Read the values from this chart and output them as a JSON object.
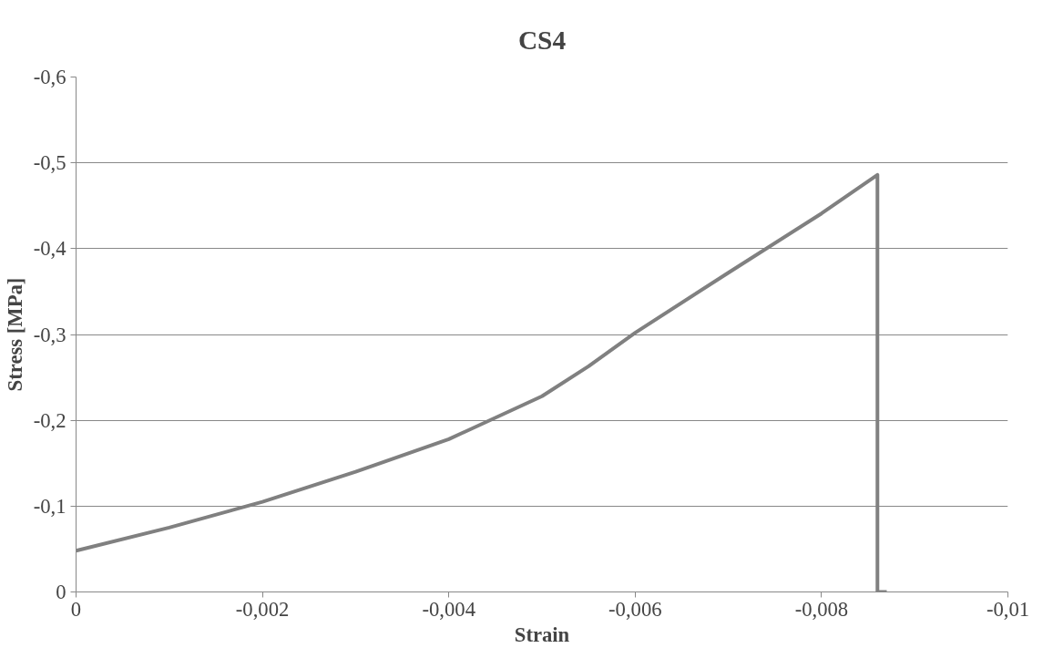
{
  "chart_data": {
    "type": "line",
    "title": "CS4",
    "xlabel": "Strain",
    "ylabel": "Stress [MPa]",
    "x": [
      0,
      -0.001,
      -0.002,
      -0.003,
      -0.004,
      -0.005,
      -0.0055,
      -0.006,
      -0.007,
      -0.008,
      -0.0086,
      -0.0086,
      -0.0087
    ],
    "series": [
      {
        "color": "#808080",
        "values": [
          -0.048,
          -0.075,
          -0.105,
          -0.14,
          -0.178,
          -0.228,
          -0.263,
          -0.302,
          -0.372,
          -0.441,
          -0.486,
          0,
          0
        ]
      }
    ],
    "xlim": [
      0,
      -0.01
    ],
    "ylim": [
      0,
      -0.6
    ],
    "xticks": [
      0,
      {
        "value": -0.002,
        "label": "-0,002"
      },
      {
        "value": -0.004,
        "label": "-0,004"
      },
      {
        "value": -0.006,
        "label": "-0,006"
      },
      {
        "value": -0.008,
        "label": "-0,008"
      },
      {
        "value": -0.01,
        "label": "-0,01"
      }
    ],
    "yticks": [
      0,
      {
        "value": -0.1,
        "label": "-0,1"
      },
      {
        "value": -0.2,
        "label": "-0,2"
      },
      {
        "value": -0.3,
        "label": "-0,3"
      },
      {
        "value": -0.4,
        "label": "-0,4"
      },
      {
        "value": -0.5,
        "label": "-0,5"
      },
      {
        "value": -0.6,
        "label": "-0,6"
      }
    ],
    "grid": "y",
    "marker": "none",
    "line_style": "solid"
  }
}
